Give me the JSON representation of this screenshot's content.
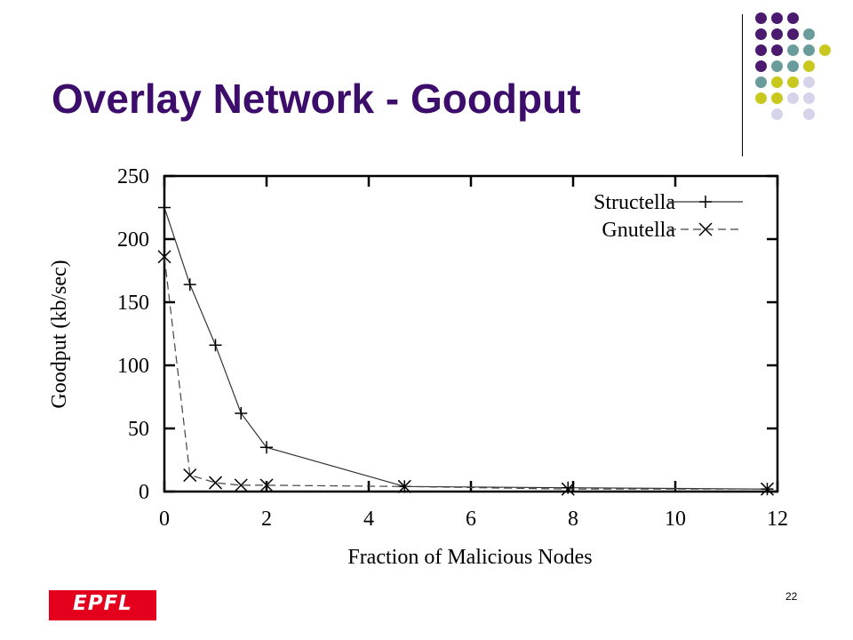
{
  "slide": {
    "title": "Overlay Network - Goodput",
    "page_number": "22",
    "logo_text": "EPFL"
  },
  "theme": {
    "title_color": "#3c0d6b",
    "dot_colors": {
      "purple": "#4b1a6e",
      "teal": "#6b9c9c",
      "lime": "#c8c81e",
      "lavender": "#d6d4ea"
    },
    "dot_rows": [
      [
        "purple",
        "purple",
        "purple",
        "",
        "",
        ""
      ],
      [
        "purple",
        "purple",
        "purple",
        "teal",
        "",
        ""
      ],
      [
        "purple",
        "purple",
        "teal",
        "teal",
        "lime",
        ""
      ],
      [
        "purple",
        "teal",
        "teal",
        "lime",
        "",
        ""
      ],
      [
        "teal",
        "lime",
        "lime",
        "lavender",
        "",
        ""
      ],
      [
        "lime",
        "lime",
        "lavender",
        "lavender",
        "",
        ""
      ],
      [
        "",
        "lavender",
        "",
        "lavender",
        "",
        ""
      ]
    ],
    "logo_color": "#e4001c"
  },
  "chart_data": {
    "type": "line",
    "title": "",
    "xlabel": "Fraction of Malicious Nodes",
    "ylabel": "Goodput (kb/sec)",
    "xlim": [
      0,
      12
    ],
    "ylim": [
      0,
      250
    ],
    "xticks": [
      0,
      2,
      4,
      6,
      8,
      10,
      12
    ],
    "yticks": [
      0,
      50,
      100,
      150,
      200,
      250
    ],
    "grid": false,
    "legend_position": "top-right",
    "series": [
      {
        "name": "Structella",
        "marker": "plus",
        "line_style": "solid",
        "x": [
          0,
          0.5,
          1,
          1.5,
          2,
          4.7,
          7.9,
          11.8
        ],
        "y": [
          225,
          164,
          116,
          62,
          35,
          4,
          3,
          2
        ]
      },
      {
        "name": "Gnutella",
        "marker": "cross",
        "line_style": "dashed",
        "x": [
          0,
          0.5,
          1,
          1.5,
          2,
          4.7,
          7.9,
          11.8
        ],
        "y": [
          186,
          13,
          7,
          5,
          5,
          4,
          2,
          2
        ]
      }
    ]
  }
}
